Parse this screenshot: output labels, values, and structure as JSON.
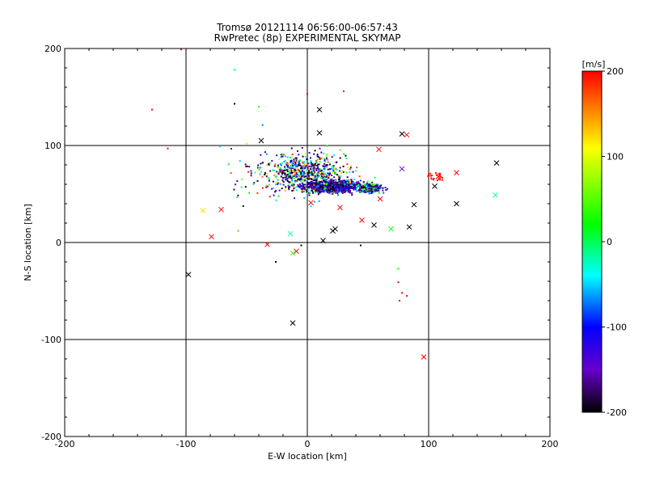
{
  "chart_data": {
    "type": "scatter",
    "title": "Tromsø 20121114 06:56:00-06:57:43",
    "subtitle": "RwPretec (8p) EXPERIMENTAL SKYMAP",
    "xlabel": "E-W location [km]",
    "ylabel": "N-S location [km]",
    "xlim": [
      -200,
      200
    ],
    "ylim": [
      -200,
      200
    ],
    "x_ticks": [
      "-200",
      "-100",
      "0",
      "100",
      "200"
    ],
    "y_ticks": [
      "-200",
      "-100",
      "0",
      "100",
      "200"
    ],
    "grid_lines": [
      -100,
      0,
      100
    ],
    "grid": true,
    "colorbar": {
      "label": "[m/s]",
      "range": [
        -200,
        200
      ],
      "ticks": [
        "200",
        "100",
        "0",
        "-100",
        "-200"
      ],
      "colors": [
        "#ff0000",
        "#ffff00",
        "#00ff00",
        "#00ffff",
        "#0000ff",
        "#6600cc",
        "#000000"
      ]
    },
    "dense_cluster": {
      "note_x_range": [
        -40,
        80
      ],
      "note_y_range": [
        40,
        100
      ]
    },
    "cross_markers": [
      {
        "x": 10,
        "y": 137,
        "v": -200
      },
      {
        "x": 10,
        "y": 113,
        "v": -200
      },
      {
        "x": 78,
        "y": 112,
        "v": -200
      },
      {
        "x": 82,
        "y": 111,
        "v": 200
      },
      {
        "x": 59,
        "y": 96,
        "v": 200
      },
      {
        "x": 156,
        "y": 82,
        "v": -200
      },
      {
        "x": 123,
        "y": 72,
        "v": 200
      },
      {
        "x": 78,
        "y": 76,
        "v": -150
      },
      {
        "x": 108,
        "y": 68,
        "v": 200
      },
      {
        "x": 105,
        "y": 58,
        "v": -200
      },
      {
        "x": 155,
        "y": 49,
        "v": -20
      },
      {
        "x": 123,
        "y": 40,
        "v": -200
      },
      {
        "x": 88,
        "y": 39,
        "v": -200
      },
      {
        "x": 60,
        "y": 45,
        "v": 200
      },
      {
        "x": 3,
        "y": 41,
        "v": 200
      },
      {
        "x": 27,
        "y": 36,
        "v": 200
      },
      {
        "x": 45,
        "y": 23,
        "v": 200
      },
      {
        "x": 55,
        "y": 18,
        "v": -200
      },
      {
        "x": 69,
        "y": 14,
        "v": 20
      },
      {
        "x": 84,
        "y": 16,
        "v": -200
      },
      {
        "x": 23,
        "y": 14,
        "v": -200
      },
      {
        "x": 21,
        "y": 12,
        "v": -200
      },
      {
        "x": 13,
        "y": 2,
        "v": -200
      },
      {
        "x": -14,
        "y": 9,
        "v": -20
      },
      {
        "x": -33,
        "y": -2,
        "v": 200
      },
      {
        "x": -79,
        "y": 6,
        "v": 200
      },
      {
        "x": -71,
        "y": 34,
        "v": 200
      },
      {
        "x": -86,
        "y": 33,
        "v": 120
      },
      {
        "x": -9,
        "y": -9,
        "v": 200
      },
      {
        "x": -12,
        "y": -11,
        "v": 40
      },
      {
        "x": -98,
        "y": -33,
        "v": -200
      },
      {
        "x": -12,
        "y": -83,
        "v": -200
      },
      {
        "x": 96,
        "y": -118,
        "v": 200
      },
      {
        "x": -38,
        "y": 105,
        "v": -200
      }
    ],
    "sparse_points": [
      {
        "x": -104,
        "y": 199,
        "v": 200
      },
      {
        "x": -128,
        "y": 137,
        "v": 200
      },
      {
        "x": -115,
        "y": 97,
        "v": 200
      },
      {
        "x": -60,
        "y": 178,
        "v": -20
      },
      {
        "x": 0,
        "y": 153,
        "v": 200
      },
      {
        "x": 30,
        "y": 156,
        "v": 200
      },
      {
        "x": -60,
        "y": 143,
        "v": -200
      },
      {
        "x": -40,
        "y": 140,
        "v": 40
      },
      {
        "x": 75,
        "y": -41,
        "v": 200
      },
      {
        "x": 78,
        "y": -52,
        "v": 200
      },
      {
        "x": 76,
        "y": -60,
        "v": 200
      },
      {
        "x": 82,
        "y": -55,
        "v": 200
      },
      {
        "x": 75,
        "y": -27,
        "v": 20
      },
      {
        "x": 44,
        "y": -3,
        "v": -200
      },
      {
        "x": -26,
        "y": -20,
        "v": -200
      },
      {
        "x": -5,
        "y": -3,
        "v": -200
      },
      {
        "x": -57,
        "y": 12,
        "v": 150
      }
    ]
  }
}
